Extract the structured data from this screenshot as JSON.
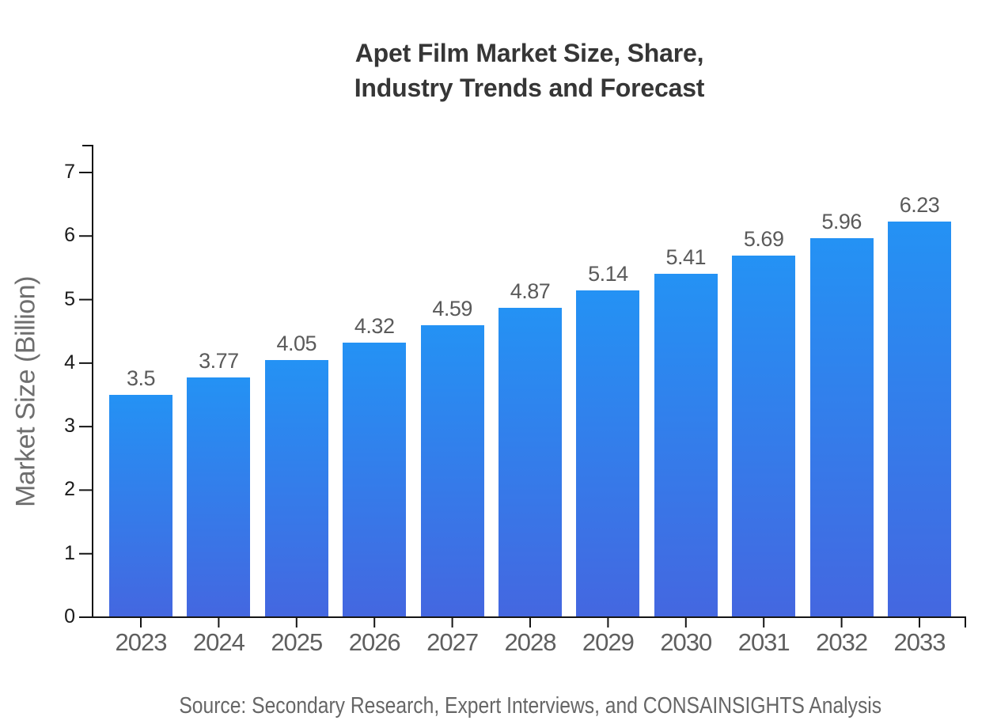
{
  "title": {
    "line1": "Apet Film Market Size, Share,",
    "line2": "Industry Trends and Forecast"
  },
  "source_note": "Source: Secondary Research, Expert Interviews, and CONSAINSIGHTS Analysis",
  "chart_data": {
    "type": "bar",
    "title": "Apet Film Market Size, Share, Industry Trends and Forecast",
    "categories": [
      "2023",
      "2024",
      "2025",
      "2026",
      "2027",
      "2028",
      "2029",
      "2030",
      "2031",
      "2032",
      "2033"
    ],
    "values": [
      3.5,
      3.77,
      4.05,
      4.32,
      4.59,
      4.87,
      5.14,
      5.41,
      5.69,
      5.96,
      6.23
    ],
    "value_labels": [
      "3.5",
      "3.77",
      "4.05",
      "4.32",
      "4.59",
      "4.87",
      "5.14",
      "5.41",
      "5.69",
      "5.96",
      "6.23"
    ],
    "xlabel": "",
    "ylabel": "Market Size (Billion)",
    "ylim": [
      0,
      7
    ],
    "yticks": [
      0,
      1,
      2,
      3,
      4,
      5,
      6,
      7
    ],
    "grid": false,
    "legend": false,
    "bar_color_top": "#2492f4",
    "bar_color_bottom": "#4467e0",
    "axis_color": "#151515",
    "source": "Source: Secondary Research, Expert Interviews, and CONSAINSIGHTS Analysis"
  },
  "colors": {
    "background": "#ffffff",
    "title_text": "#363636",
    "value_label_text": "#5a5a5a",
    "category_label_text": "#5f5f5f",
    "y_tick_text": "#1b1b1b",
    "axis_title_text": "#6e6e6e",
    "source_text": "#666666"
  }
}
